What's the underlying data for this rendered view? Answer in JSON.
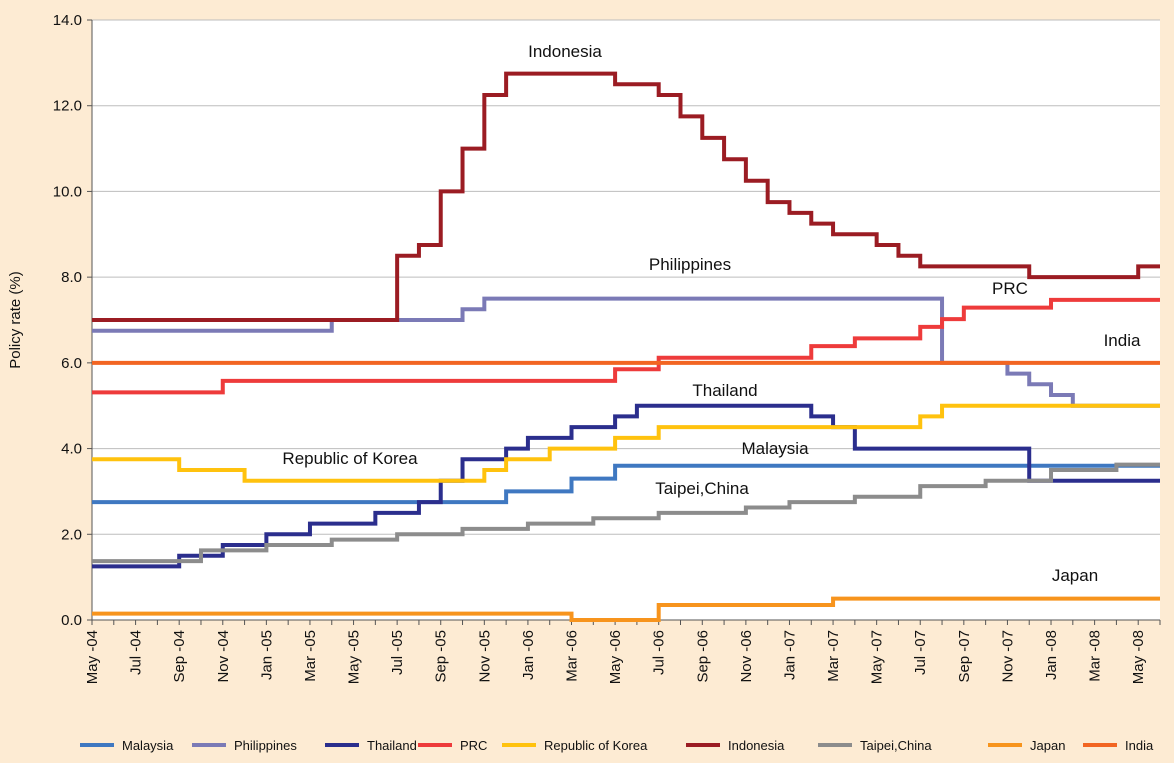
{
  "chart_data": {
    "type": "step-line",
    "y_label": "Policy rate (%)",
    "categories": [
      "May -04",
      null,
      "Jul -04",
      null,
      "Sep -04",
      null,
      "Nov -04",
      null,
      "Jan -05",
      null,
      "Mar -05",
      null,
      "May -05",
      null,
      "Jul -05",
      null,
      "Sep -05",
      null,
      "Nov -05",
      null,
      "Jan -06",
      null,
      "Mar -06",
      null,
      "May -06",
      null,
      "Jul -06",
      null,
      "Sep -06",
      null,
      "Nov -06",
      null,
      "Jan -07",
      null,
      "Mar -07",
      null,
      "May -07",
      null,
      "Jul -07",
      null,
      "Sep -07",
      null,
      "Nov -07",
      null,
      "Jan -08",
      null,
      "Mar -08",
      null,
      "May -08",
      null
    ],
    "ylim": [
      0,
      14
    ],
    "yticks": [
      {
        "value": 0,
        "label": "0.0"
      },
      {
        "value": 2,
        "label": "2.0"
      },
      {
        "value": 4,
        "label": "4.0"
      },
      {
        "value": 6,
        "label": "6.0"
      },
      {
        "value": 8,
        "label": "8.0"
      },
      {
        "value": 10,
        "label": "10.0"
      },
      {
        "value": 12,
        "label": "12.0"
      },
      {
        "value": 14,
        "label": "14.0"
      }
    ],
    "grid": true,
    "legend": "bottom",
    "series": [
      {
        "name": "Malaysia",
        "color": "#3f78c1",
        "values": [
          2.75,
          2.75,
          2.75,
          2.75,
          2.75,
          2.75,
          2.75,
          2.75,
          2.75,
          2.75,
          2.75,
          2.75,
          2.75,
          2.75,
          2.75,
          2.75,
          2.75,
          2.75,
          2.75,
          3.0,
          3.0,
          3.0,
          3.3,
          3.3,
          3.6,
          3.6,
          3.6,
          3.6,
          3.6,
          3.6,
          3.6,
          3.6,
          3.6,
          3.6,
          3.6,
          3.6,
          3.6,
          3.6,
          3.6,
          3.6,
          3.6,
          3.6,
          3.6,
          3.6,
          3.6,
          3.6,
          3.6,
          3.6,
          3.6,
          3.6
        ]
      },
      {
        "name": "Philippines",
        "color": "#7b7ab6",
        "values": [
          6.75,
          6.75,
          6.75,
          6.75,
          6.75,
          6.75,
          6.75,
          6.75,
          6.75,
          6.75,
          6.75,
          7.0,
          7.0,
          7.0,
          7.0,
          7.0,
          7.0,
          7.25,
          7.5,
          7.5,
          7.5,
          7.5,
          7.5,
          7.5,
          7.5,
          7.5,
          7.5,
          7.5,
          7.5,
          7.5,
          7.5,
          7.5,
          7.5,
          7.5,
          7.5,
          7.5,
          7.5,
          7.5,
          7.5,
          6.0,
          6.0,
          6.0,
          5.75,
          5.5,
          5.25,
          5.0,
          5.0,
          5.0,
          5.0,
          5.0
        ]
      },
      {
        "name": "Thailand",
        "color": "#2b2e8d",
        "values": [
          1.25,
          1.25,
          1.25,
          1.25,
          1.5,
          1.5,
          1.75,
          1.75,
          2.0,
          2.0,
          2.25,
          2.25,
          2.25,
          2.5,
          2.5,
          2.75,
          3.25,
          3.75,
          3.75,
          4.0,
          4.25,
          4.25,
          4.5,
          4.5,
          4.75,
          5.0,
          5.0,
          5.0,
          5.0,
          5.0,
          5.0,
          5.0,
          5.0,
          4.75,
          4.5,
          4.0,
          4.0,
          4.0,
          4.0,
          4.0,
          4.0,
          4.0,
          4.0,
          3.25,
          3.25,
          3.25,
          3.25,
          3.25,
          3.25,
          3.25
        ]
      },
      {
        "name": "PRC",
        "color": "#ee3b3b",
        "values": [
          5.31,
          5.31,
          5.31,
          5.31,
          5.31,
          5.31,
          5.58,
          5.58,
          5.58,
          5.58,
          5.58,
          5.58,
          5.58,
          5.58,
          5.58,
          5.58,
          5.58,
          5.58,
          5.58,
          5.58,
          5.58,
          5.58,
          5.58,
          5.58,
          5.85,
          5.85,
          6.12,
          6.12,
          6.12,
          6.12,
          6.12,
          6.12,
          6.12,
          6.39,
          6.39,
          6.57,
          6.57,
          6.57,
          6.84,
          7.02,
          7.29,
          7.29,
          7.29,
          7.29,
          7.47,
          7.47,
          7.47,
          7.47,
          7.47,
          7.47
        ]
      },
      {
        "name": "Republic of Korea",
        "color": "#ffc20e",
        "values": [
          3.75,
          3.75,
          3.75,
          3.75,
          3.5,
          3.5,
          3.5,
          3.25,
          3.25,
          3.25,
          3.25,
          3.25,
          3.25,
          3.25,
          3.25,
          3.25,
          3.25,
          3.25,
          3.5,
          3.75,
          3.75,
          4.0,
          4.0,
          4.0,
          4.25,
          4.25,
          4.5,
          4.5,
          4.5,
          4.5,
          4.5,
          4.5,
          4.5,
          4.5,
          4.5,
          4.5,
          4.5,
          4.5,
          4.75,
          5.0,
          5.0,
          5.0,
          5.0,
          5.0,
          5.0,
          5.0,
          5.0,
          5.0,
          5.0,
          5.0
        ]
      },
      {
        "name": "Indonesia",
        "color": "#9b1c23",
        "values": [
          7.0,
          7.0,
          7.0,
          7.0,
          7.0,
          7.0,
          7.0,
          7.0,
          7.0,
          7.0,
          7.0,
          7.0,
          7.0,
          7.0,
          8.5,
          8.75,
          10.0,
          11.0,
          12.25,
          12.75,
          12.75,
          12.75,
          12.75,
          12.75,
          12.5,
          12.5,
          12.25,
          11.75,
          11.25,
          10.75,
          10.25,
          9.75,
          9.5,
          9.25,
          9.0,
          9.0,
          8.75,
          8.5,
          8.25,
          8.25,
          8.25,
          8.25,
          8.25,
          8.0,
          8.0,
          8.0,
          8.0,
          8.0,
          8.25,
          8.25
        ]
      },
      {
        "name": "Taipei,China",
        "color": "#8c8c8c",
        "values": [
          1.375,
          1.375,
          1.375,
          1.375,
          1.375,
          1.625,
          1.625,
          1.625,
          1.75,
          1.75,
          1.75,
          1.875,
          1.875,
          1.875,
          2.0,
          2.0,
          2.0,
          2.125,
          2.125,
          2.125,
          2.25,
          2.25,
          2.25,
          2.375,
          2.375,
          2.375,
          2.5,
          2.5,
          2.5,
          2.5,
          2.625,
          2.625,
          2.75,
          2.75,
          2.75,
          2.875,
          2.875,
          2.875,
          3.125,
          3.125,
          3.125,
          3.25,
          3.25,
          3.25,
          3.5,
          3.5,
          3.5,
          3.625,
          3.625,
          3.625
        ]
      },
      {
        "name": "Japan",
        "color": "#f7941d",
        "values": [
          0.15,
          0.15,
          0.15,
          0.15,
          0.15,
          0.15,
          0.15,
          0.15,
          0.15,
          0.15,
          0.15,
          0.15,
          0.15,
          0.15,
          0.15,
          0.15,
          0.15,
          0.15,
          0.15,
          0.15,
          0.15,
          0.15,
          0.0,
          0.0,
          0.0,
          0.0,
          0.35,
          0.35,
          0.35,
          0.35,
          0.35,
          0.35,
          0.35,
          0.35,
          0.5,
          0.5,
          0.5,
          0.5,
          0.5,
          0.5,
          0.5,
          0.5,
          0.5,
          0.5,
          0.5,
          0.5,
          0.5,
          0.5,
          0.5,
          0.5
        ]
      },
      {
        "name": "India",
        "color": "#f26522",
        "values": [
          6.0,
          6.0,
          6.0,
          6.0,
          6.0,
          6.0,
          6.0,
          6.0,
          6.0,
          6.0,
          6.0,
          6.0,
          6.0,
          6.0,
          6.0,
          6.0,
          6.0,
          6.0,
          6.0,
          6.0,
          6.0,
          6.0,
          6.0,
          6.0,
          6.0,
          6.0,
          6.0,
          6.0,
          6.0,
          6.0,
          6.0,
          6.0,
          6.0,
          6.0,
          6.0,
          6.0,
          6.0,
          6.0,
          6.0,
          6.0,
          6.0,
          6.0,
          6.0,
          6.0,
          6.0,
          6.0,
          6.0,
          6.0,
          6.0,
          6.0
        ]
      }
    ],
    "annotations": [
      "Indonesia",
      "Philippines",
      "PRC",
      "India",
      "Thailand",
      "Republic of Korea",
      "Malaysia",
      "Taipei,China",
      "Japan"
    ]
  }
}
